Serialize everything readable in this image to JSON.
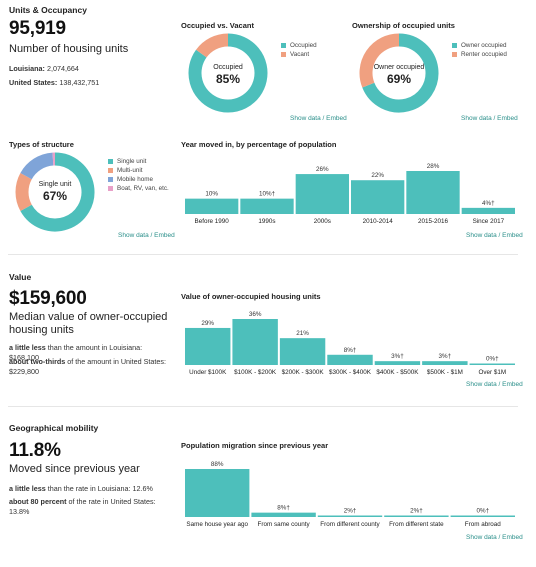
{
  "colors": {
    "teal": "#4dbfbb",
    "orange": "#f0a080",
    "blue": "#7fa4d8",
    "pink": "#e8a0c8",
    "link": "#2a8f8a"
  },
  "units": {
    "section_title": "Units & Occupancy",
    "count": "95,919",
    "count_label": "Number of housing units",
    "louisiana_label": "Louisiana:",
    "louisiana_value": "2,074,664",
    "us_label": "United States:",
    "us_value": "138,432,751"
  },
  "occupied_vacant": {
    "title": "Occupied vs. Vacant",
    "center_label": "Occupied",
    "center_value": "85%",
    "legend": [
      "Occupied",
      "Vacant"
    ],
    "link": "Show data / Embed"
  },
  "ownership": {
    "title": "Ownership of occupied units",
    "center_label": "Owner occupied",
    "center_value": "69%",
    "legend": [
      "Owner occupied",
      "Renter occupied"
    ],
    "link": "Show data / Embed"
  },
  "structure": {
    "title": "Types of structure",
    "center_label": "Single unit",
    "center_value": "67%",
    "legend": [
      "Single unit",
      "Multi-unit",
      "Mobile home",
      "Boat, RV, van, etc."
    ],
    "link": "Show data / Embed"
  },
  "moved_in": {
    "title": "Year moved in, by percentage of population",
    "link": "Show data / Embed"
  },
  "value": {
    "section_title": "Value",
    "amount": "$159,600",
    "amount_label": "Median value of owner-occupied housing units",
    "cmp1_bold": "a little less",
    "cmp1_rest": " than the amount in Louisiana: $168,100",
    "cmp2_bold": "about two-thirds",
    "cmp2_rest": " of the amount in United States: $229,800",
    "chart_title": "Value of owner-occupied housing units",
    "link": "Show data / Embed"
  },
  "mobility": {
    "section_title": "Geographical mobility",
    "rate": "11.8%",
    "rate_label": "Moved since previous year",
    "cmp1_bold": "a little less",
    "cmp1_rest": " than the rate in Louisiana: 12.6%",
    "cmp2_bold": "about 80 percent",
    "cmp2_rest": " of the rate in United States: 13.8%",
    "chart_title": "Population migration since previous year",
    "link": "Show data / Embed"
  },
  "chart_data": [
    {
      "type": "pie",
      "title": "Occupied vs. Vacant",
      "categories": [
        "Occupied",
        "Vacant"
      ],
      "values": [
        85,
        15
      ]
    },
    {
      "type": "pie",
      "title": "Ownership of occupied units",
      "categories": [
        "Owner occupied",
        "Renter occupied"
      ],
      "values": [
        69,
        31
      ]
    },
    {
      "type": "pie",
      "title": "Types of structure",
      "categories": [
        "Single unit",
        "Multi-unit",
        "Mobile home",
        "Boat, RV, van, etc."
      ],
      "values": [
        67,
        16,
        16,
        1
      ]
    },
    {
      "type": "bar",
      "title": "Year moved in, by percentage of population",
      "categories": [
        "Before 1990",
        "1990s",
        "2000s",
        "2010-2014",
        "2015-2016",
        "Since 2017"
      ],
      "values": [
        10,
        10,
        26,
        22,
        28,
        4
      ],
      "labels": [
        "10%",
        "10%†",
        "26%",
        "22%",
        "28%",
        "4%†"
      ]
    },
    {
      "type": "bar",
      "title": "Value of owner-occupied housing units",
      "categories": [
        "Under $100K",
        "$100K - $200K",
        "$200K - $300K",
        "$300K - $400K",
        "$400K - $500K",
        "$500K - $1M",
        "Over $1M"
      ],
      "values": [
        29,
        36,
        21,
        8,
        3,
        3,
        0
      ],
      "labels": [
        "29%",
        "36%",
        "21%",
        "8%†",
        "3%†",
        "3%†",
        "0%†"
      ]
    },
    {
      "type": "bar",
      "title": "Population migration since previous year",
      "categories": [
        "Same house year ago",
        "From same county",
        "From different county",
        "From different state",
        "From abroad"
      ],
      "values": [
        88,
        8,
        2,
        2,
        0
      ],
      "labels": [
        "88%",
        "8%†",
        "2%†",
        "2%†",
        "0%†"
      ]
    }
  ]
}
